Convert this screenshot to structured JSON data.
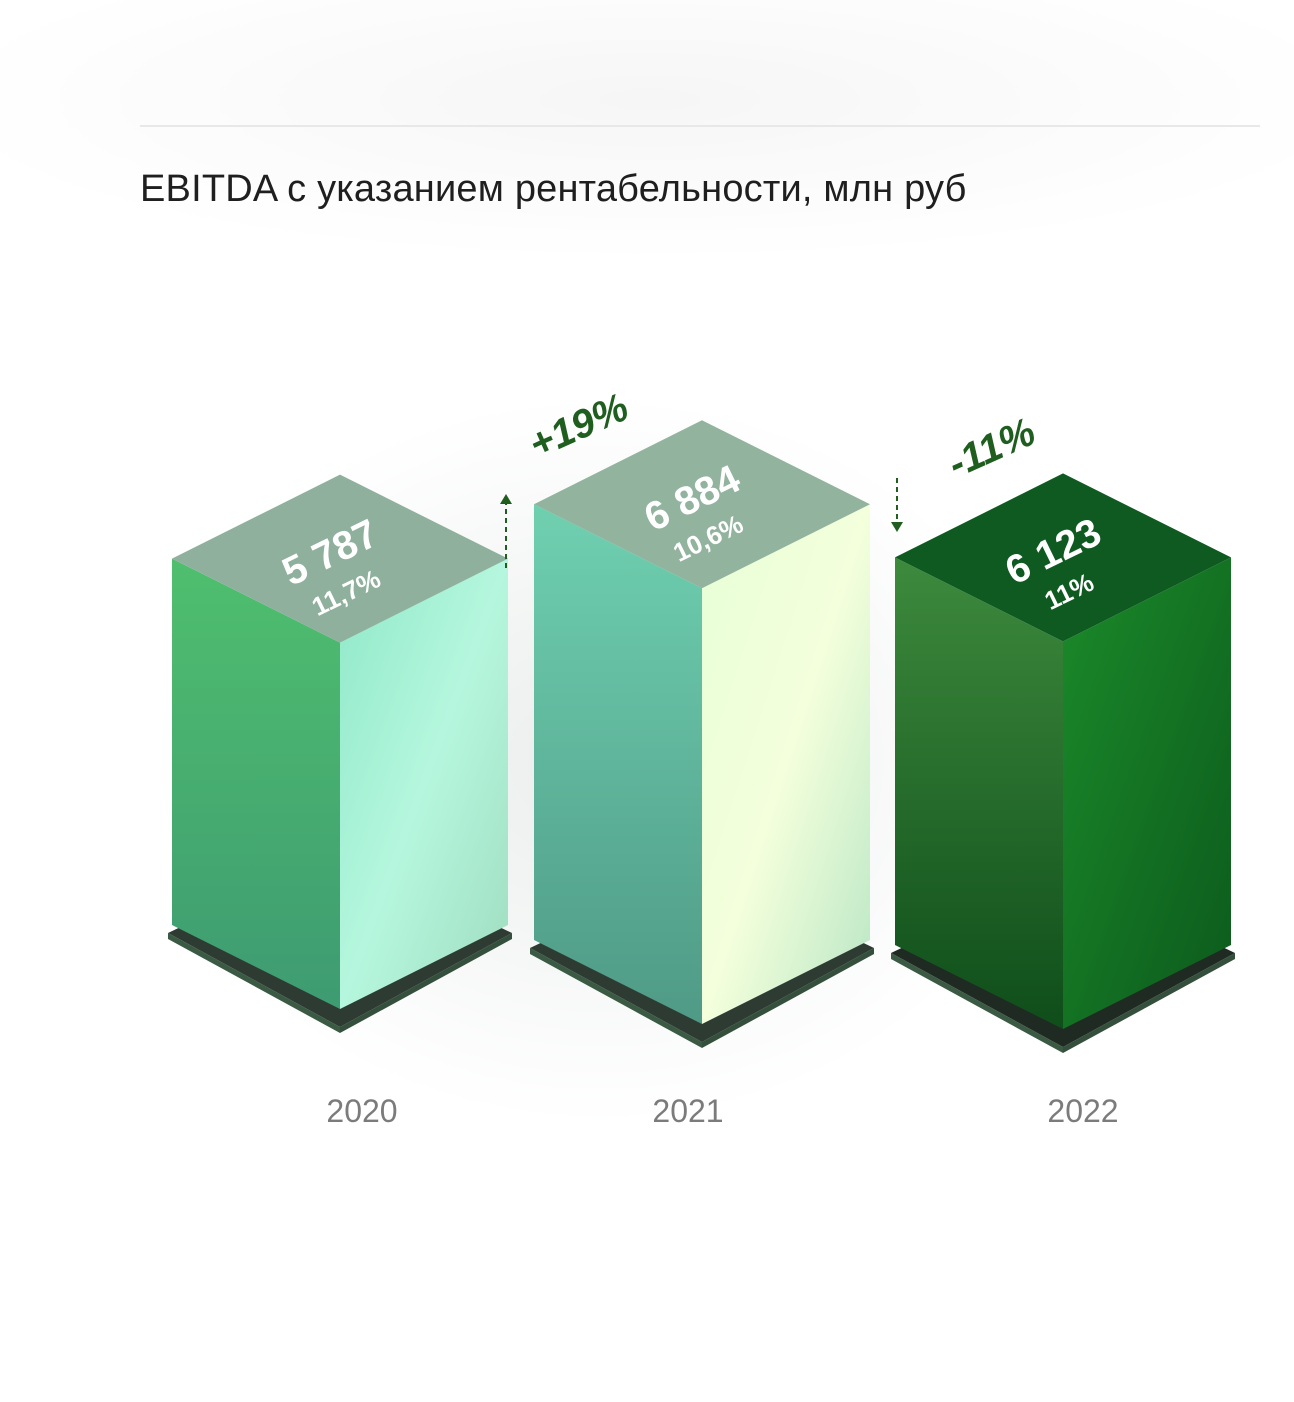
{
  "title": "EBITDA с указанием рентабельности, млн руб",
  "chart_data": {
    "type": "bar",
    "title": "EBITDA с указанием рентабельности, млн руб",
    "categories": [
      "2020",
      "2021",
      "2022"
    ],
    "series": [
      {
        "values": [
          5787,
          6884,
          6123
        ],
        "labels": [
          "5 787",
          "6 884",
          "6 123"
        ]
      }
    ],
    "margins": [
      "11,7%",
      "10,6%",
      "11%"
    ],
    "changes": [
      {
        "between": [
          "2020",
          "2021"
        ],
        "label": "+19%",
        "direction": "up"
      },
      {
        "between": [
          "2021",
          "2022"
        ],
        "label": "-11%",
        "direction": "down"
      }
    ],
    "colors": {
      "bar_2020": "#7ddbb0",
      "bar_2021": "#b9efc4",
      "bar_2022": "#1e7a2a",
      "delta_text": "#1f5e1f"
    },
    "ylim": [
      0,
      7000
    ],
    "grid": false,
    "legend": "none"
  }
}
